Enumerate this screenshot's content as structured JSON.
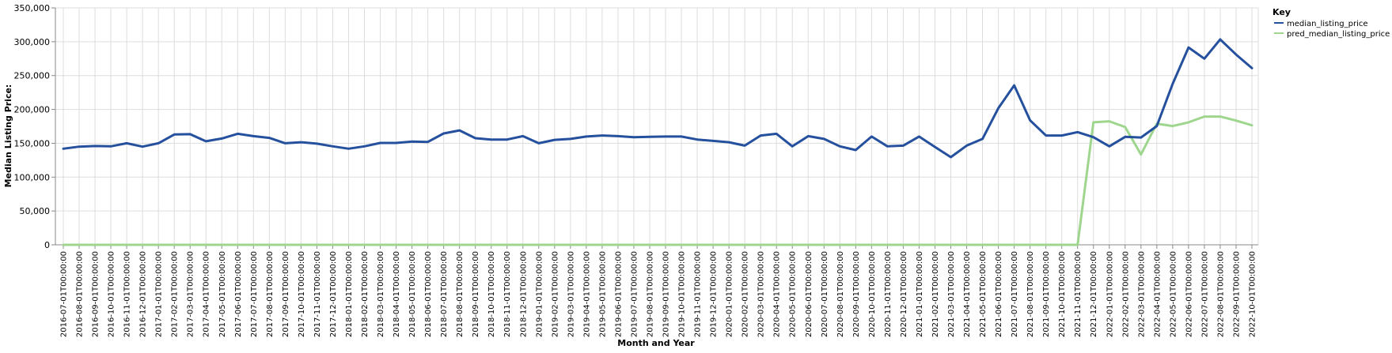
{
  "chart_data": {
    "type": "line",
    "xlabel": "Month and Year",
    "ylabel": "Median Listing Price:",
    "ylim": [
      0,
      350000
    ],
    "y_ticks": [
      "0",
      "50,000",
      "100,000",
      "150,000",
      "200,000",
      "250,000",
      "300,000",
      "350,000"
    ],
    "y_tick_values": [
      0,
      50000,
      100000,
      150000,
      200000,
      250000,
      300000,
      350000
    ],
    "grid": true,
    "legend": {
      "title": "Key",
      "position": "top-right"
    },
    "categories": [
      "2016-07-01T00:00:00",
      "2016-08-01T00:00:00",
      "2016-09-01T00:00:00",
      "2016-10-01T00:00:00",
      "2016-11-01T00:00:00",
      "2016-12-01T00:00:00",
      "2017-01-01T00:00:00",
      "2017-02-01T00:00:00",
      "2017-03-01T00:00:00",
      "2017-04-01T00:00:00",
      "2017-05-01T00:00:00",
      "2017-06-01T00:00:00",
      "2017-07-01T00:00:00",
      "2017-08-01T00:00:00",
      "2017-09-01T00:00:00",
      "2017-10-01T00:00:00",
      "2017-11-01T00:00:00",
      "2017-12-01T00:00:00",
      "2018-01-01T00:00:00",
      "2018-02-01T00:00:00",
      "2018-03-01T00:00:00",
      "2018-04-01T00:00:00",
      "2018-05-01T00:00:00",
      "2018-06-01T00:00:00",
      "2018-07-01T00:00:00",
      "2018-08-01T00:00:00",
      "2018-09-01T00:00:00",
      "2018-10-01T00:00:00",
      "2018-11-01T00:00:00",
      "2018-12-01T00:00:00",
      "2019-01-01T00:00:00",
      "2019-02-01T00:00:00",
      "2019-03-01T00:00:00",
      "2019-04-01T00:00:00",
      "2019-05-01T00:00:00",
      "2019-06-01T00:00:00",
      "2019-07-01T00:00:00",
      "2019-08-01T00:00:00",
      "2019-09-01T00:00:00",
      "2019-10-01T00:00:00",
      "2019-11-01T00:00:00",
      "2019-12-01T00:00:00",
      "2020-01-01T00:00:00",
      "2020-02-01T00:00:00",
      "2020-03-01T00:00:00",
      "2020-04-01T00:00:00",
      "2020-05-01T00:00:00",
      "2020-06-01T00:00:00",
      "2020-07-01T00:00:00",
      "2020-08-01T00:00:00",
      "2020-09-01T00:00:00",
      "2020-10-01T00:00:00",
      "2020-11-01T00:00:00",
      "2020-12-01T00:00:00",
      "2021-01-01T00:00:00",
      "2021-02-01T00:00:00",
      "2021-03-01T00:00:00",
      "2021-04-01T00:00:00",
      "2021-05-01T00:00:00",
      "2021-06-01T00:00:00",
      "2021-07-01T00:00:00",
      "2021-08-01T00:00:00",
      "2021-09-01T00:00:00",
      "2021-10-01T00:00:00",
      "2021-11-01T00:00:00",
      "2021-12-01T00:00:00",
      "2022-01-01T00:00:00",
      "2022-02-01T00:00:00",
      "2022-03-01T00:00:00",
      "2022-04-01T00:00:00",
      "2022-05-01T00:00:00",
      "2022-06-01T00:00:00",
      "2022-07-01T00:00:00",
      "2022-08-01T00:00:00",
      "2022-09-01T00:00:00",
      "2022-10-01T00:00:00"
    ],
    "series": [
      {
        "name": "median_listing_price",
        "color": "#25509e",
        "values": [
          142000,
          145000,
          146000,
          145500,
          150000,
          145000,
          150000,
          163000,
          163500,
          153000,
          157000,
          164000,
          160500,
          158000,
          150000,
          151500,
          149500,
          145500,
          142000,
          145500,
          150500,
          150500,
          152500,
          152000,
          164500,
          169000,
          157500,
          155500,
          155500,
          160500,
          150000,
          155000,
          156500,
          160000,
          161500,
          160500,
          159000,
          159500,
          160000,
          160000,
          155500,
          153500,
          151500,
          146500,
          161500,
          164000,
          145500,
          160500,
          156500,
          145500,
          140000,
          160000,
          145500,
          146500,
          160000,
          144500,
          129500,
          146500,
          156500,
          202000,
          235500,
          184000,
          161500,
          161500,
          166500,
          159000,
          145500,
          159500,
          158500,
          175500,
          238000,
          291500,
          275000,
          303500,
          281000,
          261000
        ]
      },
      {
        "name": "pred_median_listing_price",
        "color": "#9ed68d",
        "values": [
          0,
          0,
          0,
          0,
          0,
          0,
          0,
          0,
          0,
          0,
          0,
          0,
          0,
          0,
          0,
          0,
          0,
          0,
          0,
          0,
          0,
          0,
          0,
          0,
          0,
          0,
          0,
          0,
          0,
          0,
          0,
          0,
          0,
          0,
          0,
          0,
          0,
          0,
          0,
          0,
          0,
          0,
          0,
          0,
          0,
          0,
          0,
          0,
          0,
          0,
          0,
          0,
          0,
          0,
          0,
          0,
          0,
          0,
          0,
          0,
          0,
          0,
          0,
          0,
          0,
          181000,
          182500,
          174000,
          133500,
          179000,
          175500,
          181000,
          189500,
          189500,
          183500,
          176500
        ]
      }
    ]
  }
}
